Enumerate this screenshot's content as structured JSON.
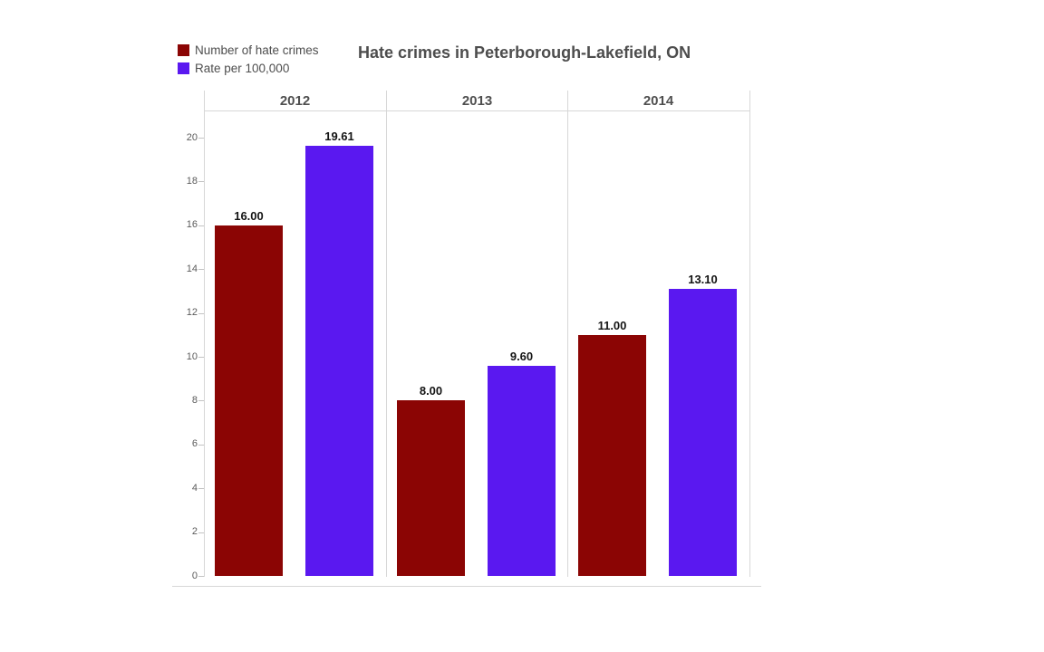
{
  "title": "Hate crimes in Peterborough-Lakefield, ON",
  "legend": {
    "items": [
      {
        "label": "Number of hate crimes",
        "color": "#8b0504"
      },
      {
        "label": "Rate per 100,000",
        "color": "#5a18f0"
      }
    ]
  },
  "chart_data": {
    "type": "bar",
    "title": "Hate crimes in Peterborough-Lakefield, ON",
    "categories": [
      "2012",
      "2013",
      "2014"
    ],
    "series": [
      {
        "name": "Number of hate crimes",
        "color": "#8b0504",
        "values": [
          16.0,
          8.0,
          11.0
        ],
        "value_labels": [
          "16.00",
          "8.00",
          "11.00"
        ]
      },
      {
        "name": "Rate per 100,000",
        "color": "#5a18f0",
        "values": [
          19.61,
          9.6,
          13.1
        ],
        "value_labels": [
          "19.61",
          "9.60",
          "13.10"
        ]
      }
    ],
    "xlabel": "",
    "ylabel": "",
    "y_ticks": [
      0,
      2,
      4,
      6,
      8,
      10,
      12,
      14,
      16,
      18,
      20
    ],
    "ylim": [
      0,
      21.2
    ],
    "grid": false,
    "legend_position": "top-left",
    "value_labels_shown": true
  }
}
